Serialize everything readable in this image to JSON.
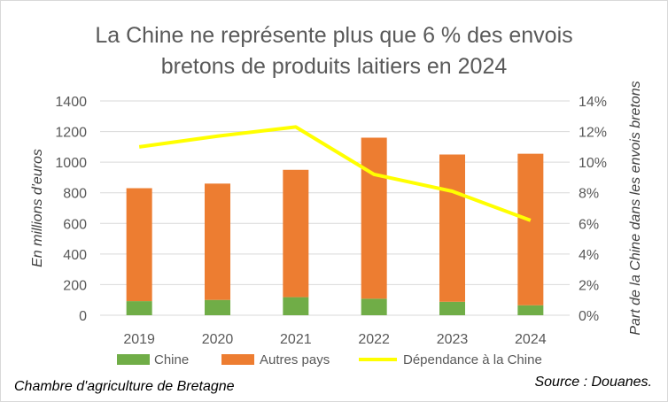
{
  "chart_data": {
    "type": "bar",
    "title_lines": [
      "La Chine ne représente plus que 6 % des envois",
      "bretons de produits laitiers en 2024"
    ],
    "categories": [
      "2019",
      "2020",
      "2021",
      "2022",
      "2023",
      "2024"
    ],
    "series": [
      {
        "name": "Chine",
        "type": "bar",
        "stacked": true,
        "axis": "left",
        "color": "#70ad47",
        "values": [
          92,
          100,
          118,
          108,
          88,
          65
        ]
      },
      {
        "name": "Autres pays",
        "type": "bar",
        "stacked": true,
        "axis": "left",
        "color": "#ed7d31",
        "values": [
          738,
          760,
          832,
          1052,
          962,
          990
        ]
      },
      {
        "name": "Dépendance à la Chine",
        "type": "line",
        "axis": "right",
        "color": "#ffff00",
        "values": [
          0.11,
          0.117,
          0.123,
          0.092,
          0.081,
          0.062
        ]
      }
    ],
    "y_left": {
      "label": "En millions d'euros",
      "min": 0,
      "max": 1400,
      "ticks": [
        "0",
        "200",
        "400",
        "600",
        "800",
        "1000",
        "1200",
        "1400"
      ]
    },
    "y_right": {
      "label": "Part de la Chine dans les envois bretons",
      "min": 0,
      "max": 0.14,
      "ticks": [
        "0%",
        "2%",
        "4%",
        "6%",
        "8%",
        "10%",
        "12%",
        "14%"
      ]
    },
    "grid": true,
    "legend_position": "bottom",
    "footer_left": "Chambre d'agriculture de Bretagne",
    "footer_right": "Source : Douanes."
  }
}
